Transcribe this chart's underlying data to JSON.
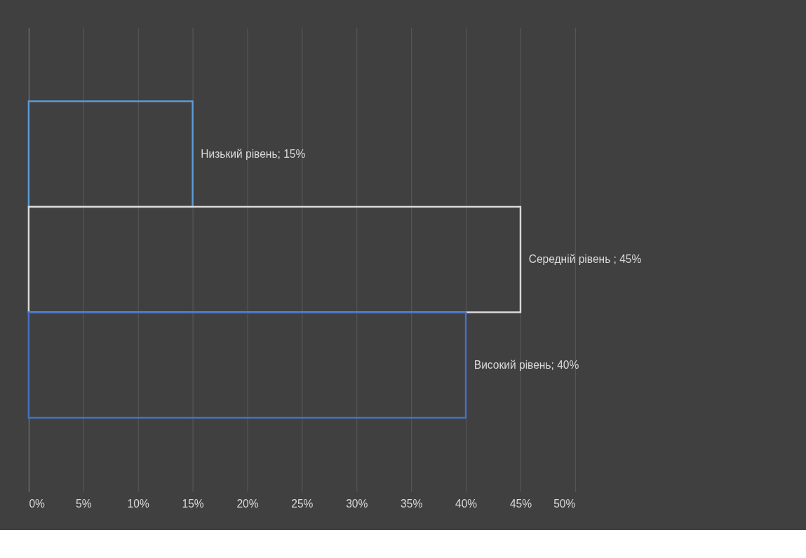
{
  "chart_data": {
    "type": "bar",
    "orientation": "horizontal",
    "categories": [
      null,
      null,
      null
    ],
    "values": [
      15,
      45,
      40
    ],
    "colors": [
      "#5b9bd5",
      "#d9d9d9",
      "#4472c4"
    ],
    "value_labels": [
      "Низький рівень; 15%",
      "Середній рівень ; 45%",
      "Високий рівень; 40%"
    ],
    "xlim": [
      0,
      50
    ],
    "xticks": [
      {
        "value": 0,
        "label": "0%"
      },
      {
        "value": 5,
        "label": "5%"
      },
      {
        "value": 10,
        "label": "10%"
      },
      {
        "value": 15,
        "label": "15%"
      },
      {
        "value": 20,
        "label": "20%"
      },
      {
        "value": 25,
        "label": "25%"
      },
      {
        "value": 30,
        "label": "30%"
      },
      {
        "value": 35,
        "label": "35%"
      },
      {
        "value": 40,
        "label": "40%"
      },
      {
        "value": 45,
        "label": "45%"
      },
      {
        "value": 50,
        "label": "50%"
      }
    ],
    "grid": "x",
    "tick_labels": "x"
  }
}
